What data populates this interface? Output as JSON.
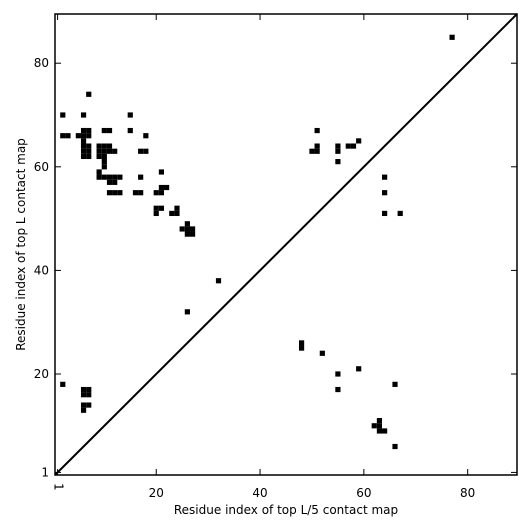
{
  "chart_data": {
    "type": "scatter",
    "title": "",
    "xlabel": "Residue index of top L/5 contact map",
    "ylabel": "Residue index of top L contact map",
    "xlim": [
      0.5,
      89.5
    ],
    "ylim": [
      0.5,
      89.5
    ],
    "x_ticks": [
      1,
      20,
      40,
      60,
      80
    ],
    "y_ticks": [
      1,
      20,
      40,
      60,
      80
    ],
    "grid": false,
    "diagonal": true,
    "marker": "square",
    "marker_color": "#000000",
    "upper_triangle_points": [
      [
        77,
        85
      ],
      [
        2,
        70
      ],
      [
        6,
        70
      ],
      [
        15,
        70
      ],
      [
        7,
        74
      ],
      [
        2,
        66
      ],
      [
        3,
        66
      ],
      [
        5,
        66
      ],
      [
        6,
        66
      ],
      [
        7,
        66
      ],
      [
        6,
        67
      ],
      [
        7,
        67
      ],
      [
        10,
        67
      ],
      [
        11,
        67
      ],
      [
        15,
        67
      ],
      [
        18,
        66
      ],
      [
        6,
        65
      ],
      [
        6,
        64
      ],
      [
        7,
        64
      ],
      [
        9,
        64
      ],
      [
        10,
        64
      ],
      [
        11,
        64
      ],
      [
        6,
        63
      ],
      [
        7,
        63
      ],
      [
        9,
        63
      ],
      [
        10,
        63
      ],
      [
        11,
        63
      ],
      [
        12,
        63
      ],
      [
        17,
        63
      ],
      [
        18,
        63
      ],
      [
        6,
        62
      ],
      [
        7,
        62
      ],
      [
        9,
        62
      ],
      [
        10,
        62
      ],
      [
        10,
        61
      ],
      [
        10,
        60
      ],
      [
        9,
        59
      ],
      [
        9,
        58
      ],
      [
        10,
        58
      ],
      [
        11,
        58
      ],
      [
        12,
        58
      ],
      [
        13,
        58
      ],
      [
        17,
        58
      ],
      [
        11,
        57
      ],
      [
        12,
        57
      ],
      [
        11,
        55
      ],
      [
        12,
        55
      ],
      [
        13,
        55
      ],
      [
        16,
        55
      ],
      [
        17,
        55
      ],
      [
        21,
        59
      ],
      [
        22,
        56
      ],
      [
        21,
        56
      ],
      [
        20,
        55
      ],
      [
        21,
        55
      ],
      [
        20,
        52
      ],
      [
        21,
        52
      ],
      [
        20,
        51
      ],
      [
        24,
        52
      ],
      [
        23,
        51
      ],
      [
        24,
        51
      ],
      [
        26,
        49
      ],
      [
        25,
        48
      ],
      [
        26,
        48
      ],
      [
        27,
        48
      ],
      [
        26,
        47
      ],
      [
        27,
        47
      ],
      [
        32,
        38
      ],
      [
        26,
        32
      ],
      [
        51,
        67
      ],
      [
        50,
        63
      ],
      [
        51,
        63
      ],
      [
        51,
        64
      ],
      [
        55,
        64
      ],
      [
        55,
        63
      ],
      [
        55,
        61
      ],
      [
        57,
        64
      ],
      [
        58,
        64
      ],
      [
        59,
        65
      ],
      [
        64,
        58
      ],
      [
        64,
        55
      ],
      [
        64,
        51
      ],
      [
        67,
        51
      ]
    ],
    "lower_triangle_points": [
      [
        2,
        18
      ],
      [
        6,
        17
      ],
      [
        7,
        17
      ],
      [
        6,
        16
      ],
      [
        7,
        16
      ],
      [
        6,
        14
      ],
      [
        7,
        14
      ],
      [
        6,
        13
      ],
      [
        48,
        26
      ],
      [
        48,
        25
      ],
      [
        52,
        24
      ],
      [
        59,
        21
      ],
      [
        55,
        20
      ],
      [
        66,
        18
      ],
      [
        55,
        17
      ],
      [
        63,
        11
      ],
      [
        62,
        10
      ],
      [
        63,
        10
      ],
      [
        63,
        9
      ],
      [
        64,
        9
      ],
      [
        66,
        6
      ]
    ]
  }
}
